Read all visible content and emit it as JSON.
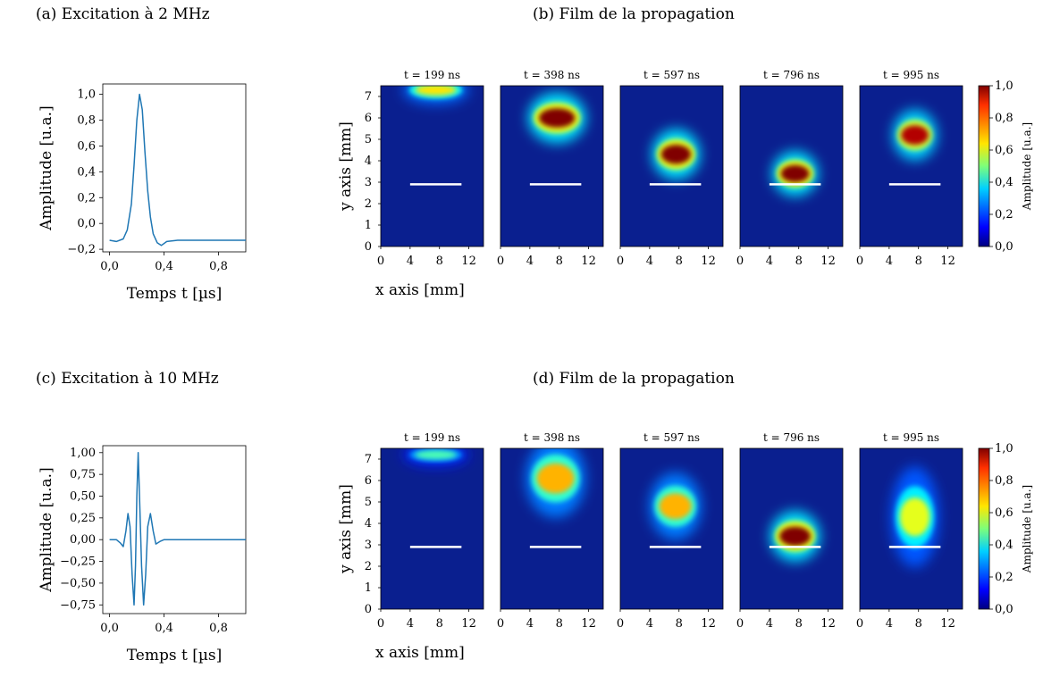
{
  "rows": [
    {
      "excitation": {
        "caption": "(a) Excitation à 2 MHz",
        "ylabel": "Amplitude [u.a.]",
        "xlabel": "Temps t [µs]",
        "yticks": [
          "1,0",
          "0,8",
          "0,6",
          "0,4",
          "0,2",
          "0,0",
          "−0,2"
        ],
        "xticks": [
          "0,0",
          "0,4",
          "0,8"
        ]
      },
      "propagation": {
        "caption": "(b) Film de la propagation",
        "ylabel": "y axis [mm]",
        "xlabel": "x axis [mm]",
        "frames": [
          "t = 199 ns",
          "t = 398 ns",
          "t = 597 ns",
          "t = 796 ns",
          "t = 995 ns"
        ],
        "yticks": [
          "7",
          "6",
          "5",
          "4",
          "3",
          "2",
          "1",
          "0"
        ],
        "xticks": [
          "0",
          "4",
          "8",
          "12"
        ],
        "colorbar_label": "Amplitude [u.a.]",
        "colorbar_ticks": [
          "1,0",
          "0,8",
          "0,6",
          "0,4",
          "0,2",
          "0,0"
        ]
      }
    },
    {
      "excitation": {
        "caption": "(c) Excitation à 10 MHz",
        "ylabel": "Amplitude [u.a.]",
        "xlabel": "Temps t [µs]",
        "yticks": [
          "1,00",
          "0,75",
          "0,50",
          "0,25",
          "0,00",
          "−0,25",
          "−0,50",
          "−0,75"
        ],
        "xticks": [
          "0,0",
          "0,4",
          "0,8"
        ]
      },
      "propagation": {
        "caption": "(d) Film de la propagation",
        "ylabel": "y axis [mm]",
        "xlabel": "x axis [mm]",
        "frames": [
          "t = 199 ns",
          "t = 398 ns",
          "t = 597 ns",
          "t = 796 ns",
          "t = 995 ns"
        ],
        "yticks": [
          "7",
          "6",
          "5",
          "4",
          "3",
          "2",
          "1",
          "0"
        ],
        "xticks": [
          "0",
          "4",
          "8",
          "12"
        ],
        "colorbar_label": "Amplitude [u.a.]",
        "colorbar_ticks": [
          "1,0",
          "0,8",
          "0,6",
          "0,4",
          "0,2",
          "0,0"
        ]
      }
    }
  ],
  "chart_data": [
    {
      "type": "line",
      "id": "excitation-2mhz",
      "xlabel": "Temps t [µs]",
      "ylabel": "Amplitude [u.a.]",
      "xlim": [
        -0.05,
        1.0
      ],
      "ylim": [
        -0.22,
        1.08
      ],
      "x": [
        0.0,
        0.05,
        0.1,
        0.13,
        0.16,
        0.18,
        0.2,
        0.22,
        0.24,
        0.26,
        0.28,
        0.3,
        0.32,
        0.35,
        0.38,
        0.42,
        0.5,
        0.6,
        0.7,
        0.8,
        0.9,
        1.0
      ],
      "y": [
        -0.13,
        -0.14,
        -0.12,
        -0.05,
        0.15,
        0.45,
        0.8,
        1.0,
        0.88,
        0.55,
        0.25,
        0.05,
        -0.08,
        -0.15,
        -0.17,
        -0.14,
        -0.13,
        -0.13,
        -0.13,
        -0.13,
        -0.13,
        -0.13
      ]
    },
    {
      "type": "line",
      "id": "excitation-10mhz",
      "xlabel": "Temps t [µs]",
      "ylabel": "Amplitude [u.a.]",
      "xlim": [
        -0.05,
        1.0
      ],
      "ylim": [
        -0.85,
        1.08
      ],
      "x": [
        0.0,
        0.05,
        0.08,
        0.1,
        0.12,
        0.135,
        0.15,
        0.165,
        0.18,
        0.19,
        0.2,
        0.21,
        0.22,
        0.235,
        0.25,
        0.265,
        0.28,
        0.3,
        0.32,
        0.34,
        0.37,
        0.4,
        0.5,
        0.6,
        0.7,
        0.8,
        0.9,
        1.0
      ],
      "y": [
        0.0,
        0.0,
        -0.04,
        -0.08,
        0.1,
        0.3,
        0.15,
        -0.4,
        -0.75,
        -0.3,
        0.5,
        1.0,
        0.5,
        -0.3,
        -0.75,
        -0.4,
        0.15,
        0.3,
        0.1,
        -0.05,
        -0.02,
        0.0,
        0.0,
        0.0,
        0.0,
        0.0,
        0.0,
        0.0
      ]
    },
    {
      "type": "heatmap",
      "id": "propagation-2mhz",
      "xlabel": "x axis [mm]",
      "ylabel": "y axis [mm]",
      "xlim": [
        0,
        14
      ],
      "ylim": [
        0,
        7.5
      ],
      "colorscale": "jet",
      "clim": [
        0,
        1
      ],
      "obstacle": {
        "x": [
          4,
          11
        ],
        "y": 2.9
      },
      "frames": [
        {
          "t": "t = 199 ns",
          "fronts": [
            {
              "cx": 7.5,
              "cy": 7.3,
              "rx": 3.3,
              "ry": 0.25,
              "amp": 0.65
            }
          ]
        },
        {
          "t": "t = 398 ns",
          "fronts": [
            {
              "cx": 7.7,
              "cy": 6.0,
              "rx": 2.9,
              "ry": 0.45,
              "amp": 1.0
            }
          ]
        },
        {
          "t": "t = 597 ns",
          "fronts": [
            {
              "cx": 7.6,
              "cy": 4.3,
              "rx": 2.4,
              "ry": 0.45,
              "amp": 1.0
            }
          ]
        },
        {
          "t": "t = 796 ns",
          "fronts": [
            {
              "cx": 7.5,
              "cy": 3.4,
              "rx": 2.3,
              "ry": 0.4,
              "amp": 1.0
            }
          ]
        },
        {
          "t": "t = 995 ns",
          "fronts": [
            {
              "cx": 7.5,
              "cy": 5.2,
              "rx": 2.2,
              "ry": 0.45,
              "amp": 0.95
            }
          ]
        }
      ]
    },
    {
      "type": "heatmap",
      "id": "propagation-10mhz",
      "xlabel": "x axis [mm]",
      "ylabel": "y axis [mm]",
      "xlim": [
        0,
        14
      ],
      "ylim": [
        0,
        7.5
      ],
      "colorscale": "jet",
      "clim": [
        0,
        1
      ],
      "obstacle": {
        "x": [
          4,
          11
        ],
        "y": 2.9
      },
      "frames": [
        {
          "t": "t = 199 ns",
          "fronts": [
            {
              "cx": 7.5,
              "cy": 7.2,
              "rx": 3.3,
              "ry": 0.2,
              "amp": 0.45
            }
          ]
        },
        {
          "t": "t = 398 ns",
          "fronts": [
            {
              "cx": 7.5,
              "cy": 6.1,
              "rx": 3.0,
              "ry": 0.7,
              "amp": 0.7
            }
          ]
        },
        {
          "t": "t = 597 ns",
          "fronts": [
            {
              "cx": 7.5,
              "cy": 4.8,
              "rx": 2.6,
              "ry": 0.6,
              "amp": 0.7
            }
          ]
        },
        {
          "t": "t = 796 ns",
          "fronts": [
            {
              "cx": 7.5,
              "cy": 3.4,
              "rx": 2.5,
              "ry": 0.45,
              "amp": 1.0
            }
          ]
        },
        {
          "t": "t = 995 ns",
          "fronts": [
            {
              "cx": 7.5,
              "cy": 4.3,
              "rx": 2.4,
              "ry": 0.9,
              "amp": 0.6
            }
          ]
        }
      ]
    }
  ]
}
